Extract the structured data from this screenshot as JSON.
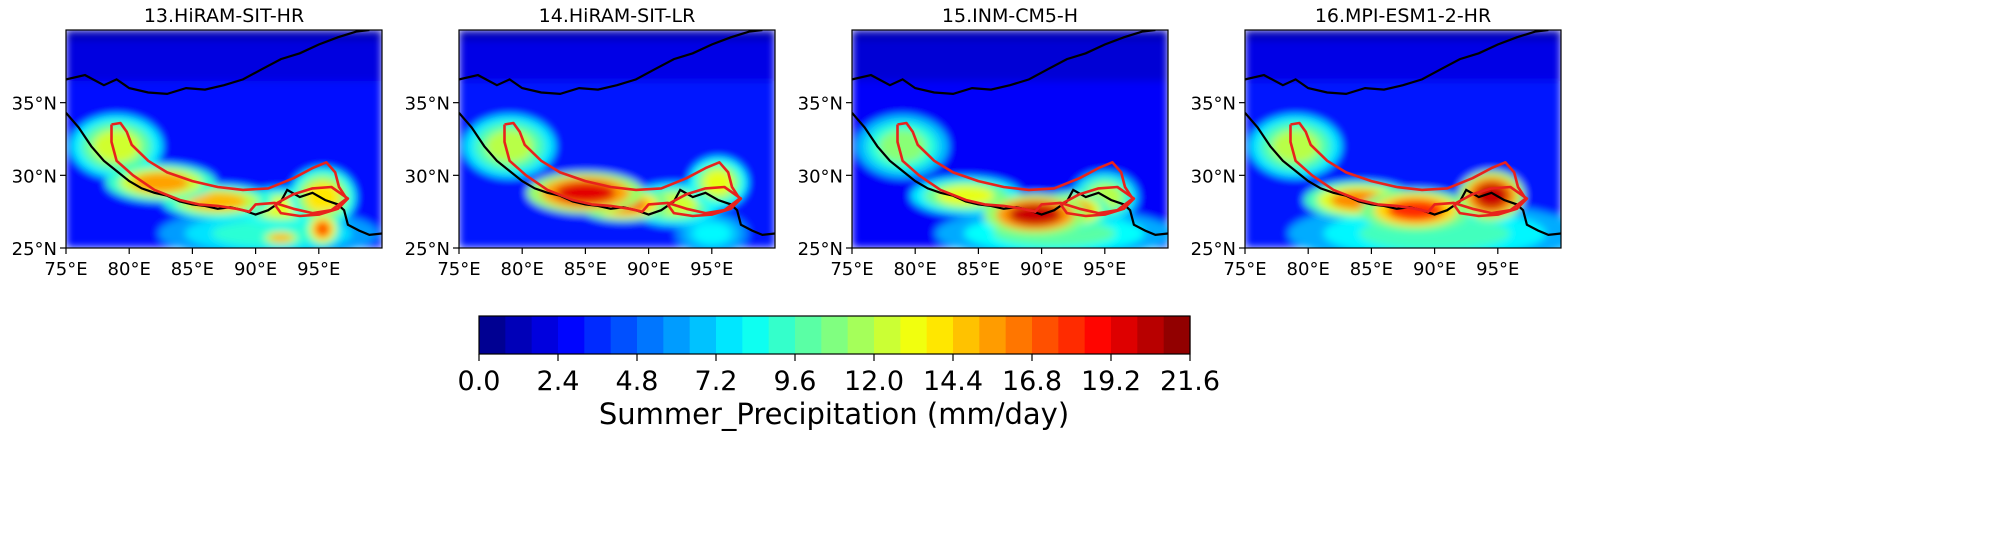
{
  "chart_data": {
    "type": "heatmap",
    "variable": "Summer_Precipitation",
    "units": "mm/day",
    "colorbar": {
      "label": "Summer_Precipitation (mm/day)",
      "min": 0.0,
      "max": 21.6,
      "step": 0.8,
      "tick_labels": [
        "0.0",
        "2.4",
        "4.8",
        "7.2",
        "9.6",
        "12.0",
        "14.4",
        "16.8",
        "19.2",
        "21.6"
      ],
      "colormap": "jet"
    },
    "axes": {
      "x": {
        "range": [
          75,
          100
        ],
        "ticks": [
          75,
          80,
          85,
          90,
          95
        ],
        "tick_labels": [
          "75°E",
          "80°E",
          "85°E",
          "90°E",
          "95°E"
        ]
      },
      "y": {
        "range": [
          25,
          40
        ],
        "ticks": [
          25,
          30,
          35
        ],
        "tick_labels": [
          "25°N",
          "30°N",
          "35°N"
        ]
      }
    },
    "panels": [
      {
        "title": "13.HiRAM-SIT-HR",
        "background": 3.0,
        "hotspots": [
          {
            "lon": 79.0,
            "lat": 32.0,
            "value": 12.5,
            "rx": 2.5,
            "ry": 1.5
          },
          {
            "lon": 82.5,
            "lat": 29.5,
            "value": 15.5,
            "rx": 3.0,
            "ry": 0.9
          },
          {
            "lon": 87.0,
            "lat": 28.2,
            "value": 15.0,
            "rx": 3.0,
            "ry": 0.8
          },
          {
            "lon": 92.0,
            "lat": 27.8,
            "value": 13.0,
            "rx": 2.5,
            "ry": 0.9
          },
          {
            "lon": 95.3,
            "lat": 28.5,
            "value": 14.0,
            "rx": 1.8,
            "ry": 1.4
          },
          {
            "lon": 92.0,
            "lat": 25.7,
            "value": 15.0,
            "rx": 1.2,
            "ry": 0.4
          },
          {
            "lon": 95.3,
            "lat": 26.3,
            "value": 17.0,
            "rx": 0.9,
            "ry": 0.8
          },
          {
            "lon": 91.0,
            "lat": 26.0,
            "value": 9.0,
            "rx": 6.0,
            "ry": 1.2
          }
        ]
      },
      {
        "title": "14.HiRAM-SIT-LR",
        "background": 3.2,
        "hotspots": [
          {
            "lon": 79.0,
            "lat": 32.0,
            "value": 12.0,
            "rx": 2.5,
            "ry": 1.5
          },
          {
            "lon": 85.0,
            "lat": 28.8,
            "value": 19.5,
            "rx": 3.2,
            "ry": 1.0
          },
          {
            "lon": 88.0,
            "lat": 28.0,
            "value": 17.5,
            "rx": 2.5,
            "ry": 0.8
          },
          {
            "lon": 92.0,
            "lat": 28.0,
            "value": 12.5,
            "rx": 2.5,
            "ry": 1.0
          },
          {
            "lon": 95.5,
            "lat": 29.5,
            "value": 13.0,
            "rx": 1.6,
            "ry": 1.2
          },
          {
            "lon": 95.0,
            "lat": 26.0,
            "value": 8.0,
            "rx": 2.0,
            "ry": 1.0
          }
        ]
      },
      {
        "title": "15.INM-CM5-H",
        "background": 2.6,
        "hotspots": [
          {
            "lon": 79.0,
            "lat": 32.0,
            "value": 11.0,
            "rx": 2.5,
            "ry": 1.5
          },
          {
            "lon": 84.0,
            "lat": 28.6,
            "value": 13.0,
            "rx": 3.0,
            "ry": 0.9
          },
          {
            "lon": 89.5,
            "lat": 27.3,
            "value": 20.0,
            "rx": 2.8,
            "ry": 1.0
          },
          {
            "lon": 92.5,
            "lat": 27.6,
            "value": 16.0,
            "rx": 2.0,
            "ry": 0.9
          },
          {
            "lon": 95.0,
            "lat": 28.5,
            "value": 12.0,
            "rx": 1.8,
            "ry": 1.2
          },
          {
            "lon": 91.0,
            "lat": 26.0,
            "value": 10.0,
            "rx": 6.5,
            "ry": 1.2
          }
        ]
      },
      {
        "title": "16.MPI-ESM1-2-HR",
        "background": 3.2,
        "hotspots": [
          {
            "lon": 79.0,
            "lat": 32.0,
            "value": 12.0,
            "rx": 2.5,
            "ry": 1.5
          },
          {
            "lon": 84.0,
            "lat": 28.3,
            "value": 16.0,
            "rx": 3.0,
            "ry": 0.9
          },
          {
            "lon": 88.5,
            "lat": 27.6,
            "value": 18.0,
            "rx": 3.0,
            "ry": 1.0
          },
          {
            "lon": 94.5,
            "lat": 28.6,
            "value": 20.0,
            "rx": 1.8,
            "ry": 1.2
          },
          {
            "lon": 90.0,
            "lat": 26.0,
            "value": 9.5,
            "rx": 8.0,
            "ry": 1.5
          }
        ]
      }
    ],
    "overlays": {
      "boundary_color": "#000000",
      "region_color": "#e8221c",
      "boundary_north": [
        [
          75.0,
          36.6
        ],
        [
          76.5,
          36.9
        ],
        [
          78.0,
          36.2
        ],
        [
          79.0,
          36.6
        ],
        [
          80.0,
          36.0
        ],
        [
          81.5,
          35.7
        ],
        [
          83.0,
          35.6
        ],
        [
          84.5,
          36.0
        ],
        [
          86.0,
          35.9
        ],
        [
          87.5,
          36.2
        ],
        [
          89.0,
          36.6
        ],
        [
          90.5,
          37.3
        ],
        [
          92.0,
          38.0
        ],
        [
          93.5,
          38.4
        ],
        [
          95.0,
          39.0
        ],
        [
          96.5,
          39.5
        ],
        [
          98.0,
          39.9
        ],
        [
          99.0,
          40.0
        ]
      ],
      "boundary_south": [
        [
          75.0,
          34.3
        ],
        [
          76.0,
          33.3
        ],
        [
          77.0,
          32.0
        ],
        [
          78.0,
          31.0
        ],
        [
          79.0,
          30.3
        ],
        [
          80.0,
          29.6
        ],
        [
          81.0,
          29.1
        ],
        [
          82.0,
          28.8
        ],
        [
          83.0,
          28.6
        ],
        [
          84.0,
          28.2
        ],
        [
          85.0,
          28.0
        ],
        [
          86.0,
          27.9
        ],
        [
          87.0,
          27.7
        ],
        [
          88.0,
          27.8
        ],
        [
          89.0,
          27.6
        ],
        [
          90.0,
          27.3
        ],
        [
          91.0,
          27.6
        ],
        [
          92.0,
          28.2
        ],
        [
          92.5,
          29.0
        ],
        [
          93.5,
          28.5
        ],
        [
          94.5,
          28.8
        ],
        [
          95.5,
          28.3
        ],
        [
          96.5,
          28.0
        ],
        [
          97.0,
          27.6
        ],
        [
          97.3,
          26.6
        ],
        [
          98.2,
          26.2
        ],
        [
          99.0,
          25.9
        ],
        [
          100.0,
          26.0
        ]
      ],
      "region_west": [
        [
          78.6,
          33.5
        ],
        [
          79.3,
          33.6
        ],
        [
          79.8,
          33.0
        ],
        [
          80.2,
          32.1
        ],
        [
          81.5,
          31.0
        ],
        [
          83.0,
          30.2
        ],
        [
          85.0,
          29.6
        ],
        [
          87.0,
          29.2
        ],
        [
          89.0,
          29.0
        ],
        [
          91.0,
          29.1
        ],
        [
          93.0,
          29.8
        ],
        [
          94.5,
          30.5
        ],
        [
          95.6,
          30.9
        ],
        [
          96.3,
          30.2
        ],
        [
          96.6,
          29.2
        ],
        [
          97.2,
          28.4
        ],
        [
          96.0,
          27.6
        ],
        [
          94.5,
          27.4
        ],
        [
          93.0,
          27.7
        ],
        [
          91.5,
          28.1
        ],
        [
          90.0,
          28.0
        ],
        [
          89.5,
          27.5
        ],
        [
          88.5,
          27.7
        ],
        [
          87.0,
          27.9
        ],
        [
          85.5,
          28.0
        ],
        [
          84.0,
          28.3
        ],
        [
          82.0,
          29.0
        ],
        [
          80.3,
          30.0
        ],
        [
          79.0,
          31.0
        ],
        [
          78.6,
          32.3
        ],
        [
          78.6,
          33.5
        ]
      ],
      "region_east": [
        [
          91.5,
          28.0
        ],
        [
          93.0,
          28.7
        ],
        [
          94.5,
          29.1
        ],
        [
          96.0,
          29.2
        ],
        [
          97.3,
          28.4
        ],
        [
          96.5,
          27.7
        ],
        [
          95.0,
          27.3
        ],
        [
          93.5,
          27.2
        ],
        [
          92.0,
          27.4
        ],
        [
          91.5,
          28.0
        ]
      ]
    }
  }
}
